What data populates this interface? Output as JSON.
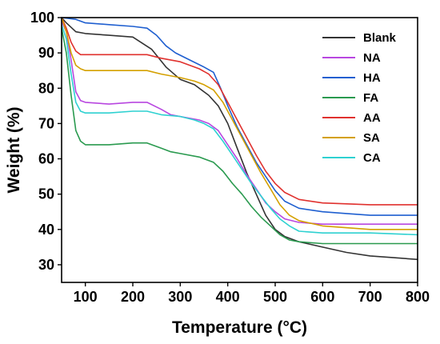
{
  "chart_data": {
    "type": "line",
    "xlabel": "Temperature (°C)",
    "ylabel": "Weight (%)",
    "xlim": [
      50,
      800
    ],
    "ylim": [
      25,
      100
    ],
    "xticks": [
      100,
      200,
      300,
      400,
      500,
      600,
      700,
      800
    ],
    "yticks": [
      30,
      40,
      50,
      60,
      70,
      80,
      90,
      100
    ],
    "grid": false,
    "legend": "top-right",
    "series": [
      {
        "name": "Blank",
        "color": "#333333",
        "points": [
          [
            50,
            100
          ],
          [
            60,
            98.5
          ],
          [
            80,
            96
          ],
          [
            100,
            95.5
          ],
          [
            150,
            95
          ],
          [
            200,
            94.5
          ],
          [
            240,
            91
          ],
          [
            270,
            86
          ],
          [
            300,
            82.5
          ],
          [
            330,
            81
          ],
          [
            360,
            78
          ],
          [
            380,
            75
          ],
          [
            400,
            70
          ],
          [
            420,
            63
          ],
          [
            440,
            56
          ],
          [
            460,
            50
          ],
          [
            480,
            44
          ],
          [
            500,
            40
          ],
          [
            520,
            38
          ],
          [
            550,
            36.5
          ],
          [
            600,
            35
          ],
          [
            650,
            33.5
          ],
          [
            700,
            32.5
          ],
          [
            750,
            32
          ],
          [
            800,
            31.5
          ]
        ]
      },
      {
        "name": "NA",
        "color": "#b847e0",
        "points": [
          [
            50,
            99
          ],
          [
            60,
            96
          ],
          [
            70,
            88
          ],
          [
            80,
            79
          ],
          [
            90,
            76.5
          ],
          [
            100,
            76
          ],
          [
            150,
            75.5
          ],
          [
            200,
            76
          ],
          [
            230,
            76
          ],
          [
            260,
            74
          ],
          [
            280,
            72.5
          ],
          [
            300,
            72
          ],
          [
            340,
            71
          ],
          [
            360,
            70
          ],
          [
            380,
            68
          ],
          [
            400,
            64
          ],
          [
            420,
            60
          ],
          [
            440,
            55.5
          ],
          [
            460,
            51.5
          ],
          [
            480,
            47.5
          ],
          [
            500,
            45
          ],
          [
            520,
            43
          ],
          [
            550,
            42
          ],
          [
            600,
            41.5
          ],
          [
            700,
            41.5
          ],
          [
            800,
            41.5
          ]
        ]
      },
      {
        "name": "HA",
        "color": "#1f5fd0",
        "points": [
          [
            50,
            100
          ],
          [
            80,
            99.5
          ],
          [
            100,
            98.5
          ],
          [
            150,
            98
          ],
          [
            200,
            97.5
          ],
          [
            230,
            97
          ],
          [
            250,
            95
          ],
          [
            270,
            92
          ],
          [
            290,
            90
          ],
          [
            320,
            88
          ],
          [
            350,
            86
          ],
          [
            370,
            84.5
          ],
          [
            385,
            80
          ],
          [
            400,
            75
          ],
          [
            420,
            69
          ],
          [
            440,
            64
          ],
          [
            460,
            59
          ],
          [
            480,
            55
          ],
          [
            500,
            51
          ],
          [
            520,
            48
          ],
          [
            550,
            46
          ],
          [
            600,
            45
          ],
          [
            650,
            44.5
          ],
          [
            700,
            44
          ],
          [
            800,
            44
          ]
        ]
      },
      {
        "name": "FA",
        "color": "#2a9a4f",
        "points": [
          [
            50,
            97
          ],
          [
            60,
            90
          ],
          [
            70,
            78
          ],
          [
            80,
            68
          ],
          [
            90,
            65
          ],
          [
            100,
            64
          ],
          [
            150,
            64
          ],
          [
            200,
            64.5
          ],
          [
            230,
            64.5
          ],
          [
            260,
            63
          ],
          [
            280,
            62
          ],
          [
            300,
            61.5
          ],
          [
            340,
            60.5
          ],
          [
            370,
            59
          ],
          [
            390,
            56.5
          ],
          [
            410,
            53
          ],
          [
            430,
            50
          ],
          [
            450,
            46.5
          ],
          [
            470,
            43.5
          ],
          [
            490,
            41
          ],
          [
            510,
            38.5
          ],
          [
            530,
            37
          ],
          [
            550,
            36.5
          ],
          [
            600,
            36
          ],
          [
            700,
            36
          ],
          [
            800,
            36
          ]
        ]
      },
      {
        "name": "AA",
        "color": "#e0312e",
        "points": [
          [
            50,
            100
          ],
          [
            60,
            97
          ],
          [
            70,
            93
          ],
          [
            80,
            90.5
          ],
          [
            90,
            89.5
          ],
          [
            100,
            89.5
          ],
          [
            150,
            89.5
          ],
          [
            200,
            89.5
          ],
          [
            230,
            89.5
          ],
          [
            260,
            88.5
          ],
          [
            300,
            87.5
          ],
          [
            340,
            85.5
          ],
          [
            360,
            84
          ],
          [
            380,
            81
          ],
          [
            400,
            76
          ],
          [
            420,
            71
          ],
          [
            440,
            66
          ],
          [
            460,
            61
          ],
          [
            480,
            56.5
          ],
          [
            500,
            53
          ],
          [
            520,
            50.5
          ],
          [
            550,
            48.5
          ],
          [
            600,
            47.5
          ],
          [
            700,
            47
          ],
          [
            800,
            47
          ]
        ]
      },
      {
        "name": "SA",
        "color": "#d4a000",
        "points": [
          [
            50,
            100
          ],
          [
            60,
            96
          ],
          [
            70,
            90
          ],
          [
            80,
            86.5
          ],
          [
            90,
            85.5
          ],
          [
            100,
            85
          ],
          [
            150,
            85
          ],
          [
            200,
            85
          ],
          [
            230,
            85
          ],
          [
            260,
            84
          ],
          [
            300,
            83
          ],
          [
            330,
            82
          ],
          [
            350,
            81
          ],
          [
            370,
            79.5
          ],
          [
            390,
            76
          ],
          [
            410,
            71
          ],
          [
            430,
            66
          ],
          [
            450,
            61
          ],
          [
            470,
            56
          ],
          [
            490,
            51.5
          ],
          [
            510,
            47
          ],
          [
            530,
            44
          ],
          [
            550,
            42.5
          ],
          [
            600,
            41
          ],
          [
            700,
            40
          ],
          [
            800,
            40
          ]
        ]
      },
      {
        "name": "CA",
        "color": "#2ed1d1",
        "points": [
          [
            50,
            98
          ],
          [
            60,
            94
          ],
          [
            70,
            84
          ],
          [
            80,
            76
          ],
          [
            90,
            73.5
          ],
          [
            100,
            73
          ],
          [
            150,
            73
          ],
          [
            200,
            73.5
          ],
          [
            230,
            73.5
          ],
          [
            260,
            72.5
          ],
          [
            300,
            72
          ],
          [
            330,
            71
          ],
          [
            350,
            70
          ],
          [
            370,
            68.5
          ],
          [
            390,
            65
          ],
          [
            410,
            61
          ],
          [
            430,
            57
          ],
          [
            450,
            53
          ],
          [
            470,
            49.5
          ],
          [
            490,
            46
          ],
          [
            510,
            43
          ],
          [
            530,
            41
          ],
          [
            550,
            39.5
          ],
          [
            600,
            39
          ],
          [
            700,
            39
          ],
          [
            800,
            38.5
          ]
        ]
      }
    ]
  }
}
